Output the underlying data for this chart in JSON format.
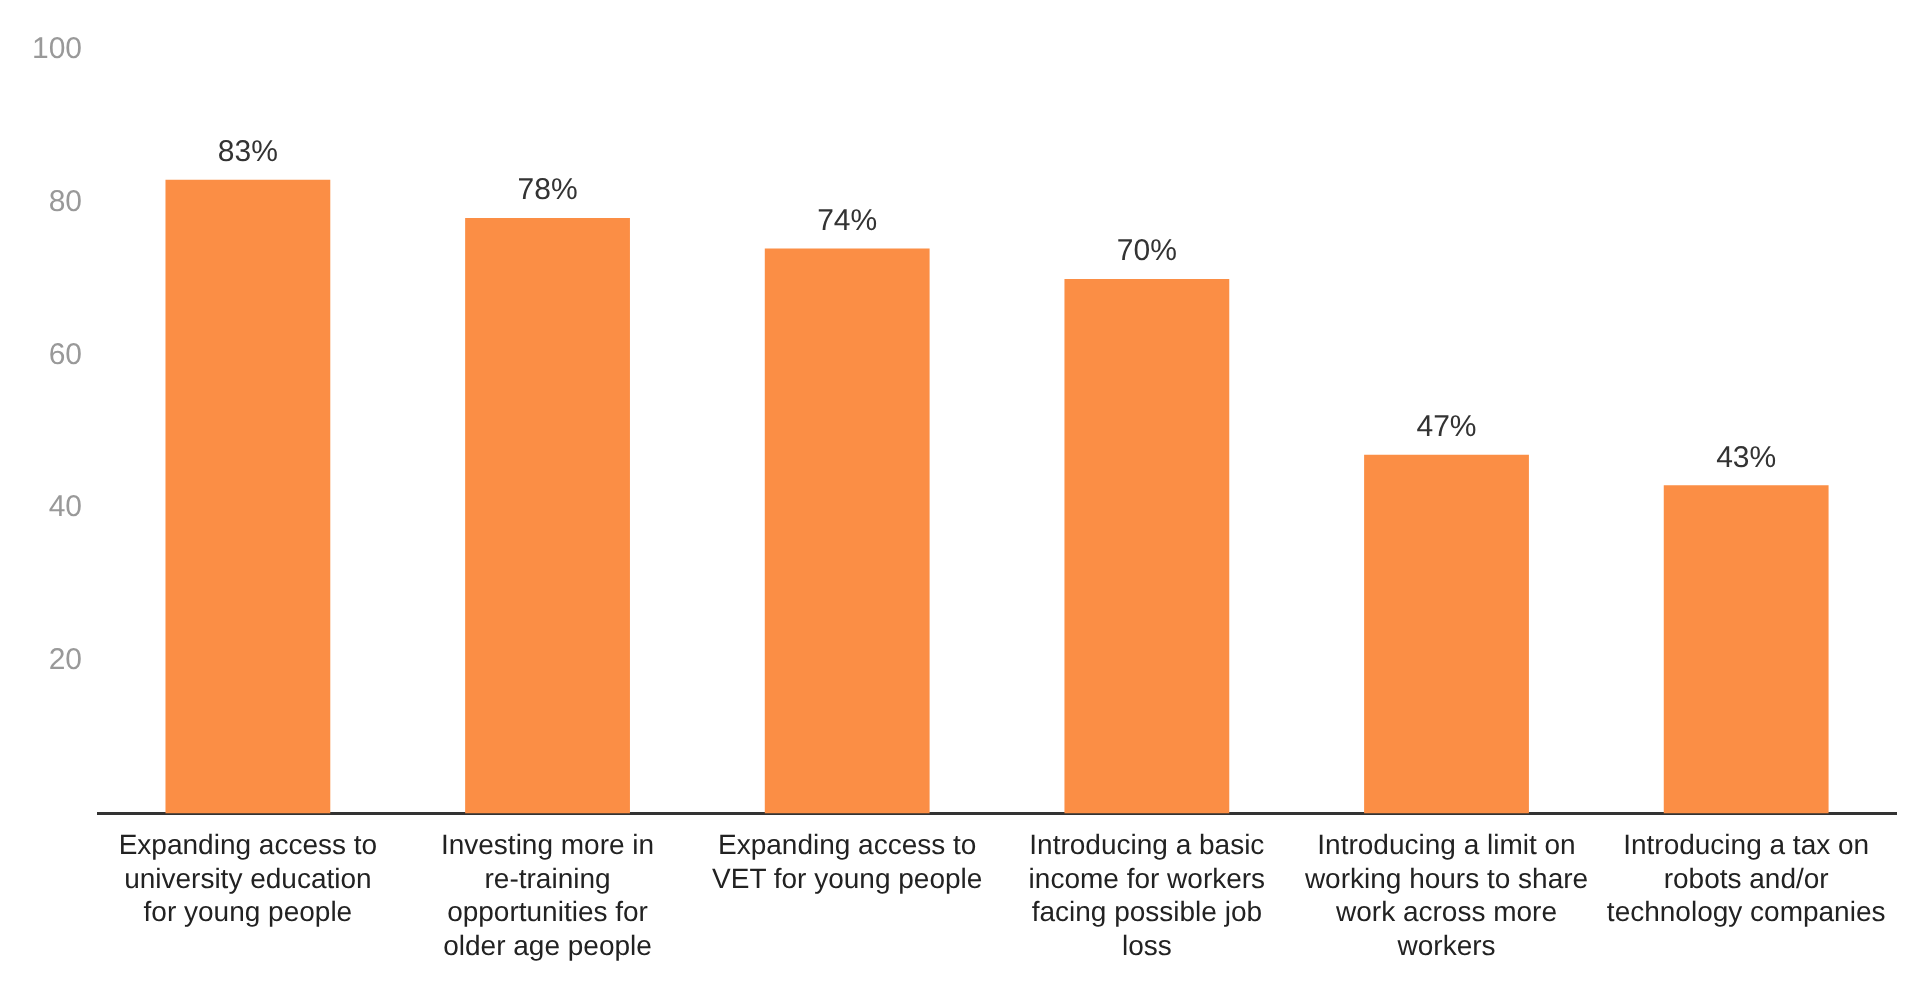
{
  "chart_data": {
    "type": "bar",
    "categories": [
      "Expanding access to university education for young people",
      "Investing more in re-training opportunities for older age people",
      "Expanding access to VET for young people",
      "Introducing a basic income for workers facing possible job loss",
      "Introducing a limit on working hours to share work across more workers",
      "Introducing a tax on robots and/or technology companies"
    ],
    "values": [
      83,
      78,
      74,
      70,
      47,
      43
    ],
    "value_labels": [
      "83%",
      "78%",
      "74%",
      "70%",
      "47%",
      "43%"
    ],
    "color": "#fb8e45",
    "ylim": [
      0,
      100
    ],
    "yticks": [
      20,
      40,
      60,
      80,
      100
    ],
    "grid": false,
    "legend": false
  }
}
